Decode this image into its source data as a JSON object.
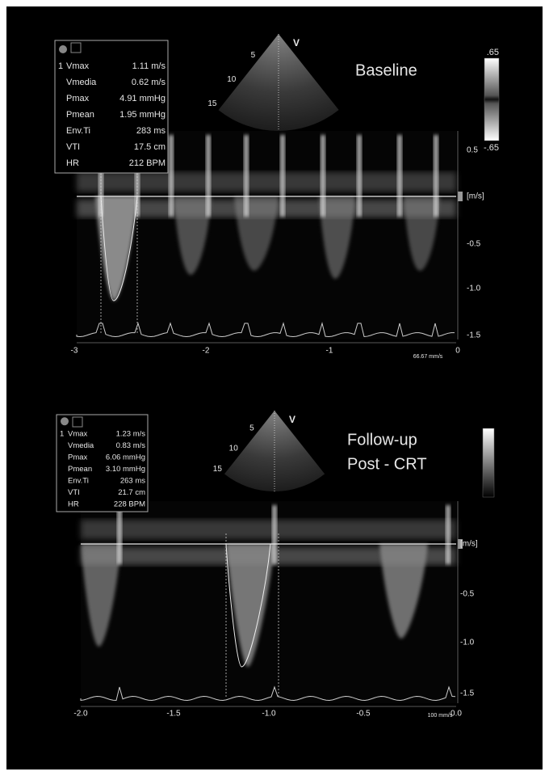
{
  "panels": [
    {
      "label": [
        "Baseline"
      ],
      "measurements": {
        "index": "1",
        "rows": [
          [
            "Vmax",
            "1.11 m/s"
          ],
          [
            "Vmedia",
            "0.62 m/s"
          ],
          [
            "Pmax",
            "4.91 mmHg"
          ],
          [
            "Pmean",
            "1.95 mmHg"
          ],
          [
            "Env.Ti",
            "283 ms"
          ],
          [
            "VTI",
            "17.5 cm"
          ],
          [
            "HR",
            "212 BPM"
          ]
        ]
      },
      "sector_depths": [
        "5",
        "10",
        "15"
      ],
      "probe_marker": "V",
      "colorbar": [
        ".65",
        "-.65"
      ],
      "velocity_axis": [
        "0.5",
        "[m/s]",
        "-0.5",
        "-1.0",
        "-1.5"
      ],
      "time_axis": [
        "-3",
        "-2",
        "-1",
        "0"
      ],
      "sweep": "66.67 mm/s"
    },
    {
      "label": [
        "Follow-up",
        "Post - CRT"
      ],
      "measurements": {
        "index": "1",
        "rows": [
          [
            "Vmax",
            "1.23 m/s"
          ],
          [
            "Vmedia",
            "0.83 m/s"
          ],
          [
            "Pmax",
            "6.06 mmHg"
          ],
          [
            "Pmean",
            "3.10 mmHg"
          ],
          [
            "Env.Ti",
            "263 ms"
          ],
          [
            "VTI",
            "21.7 cm"
          ],
          [
            "HR",
            "228 BPM"
          ]
        ]
      },
      "sector_depths": [
        "5",
        "10",
        "15"
      ],
      "probe_marker": "V",
      "colorbar": [],
      "velocity_axis": [
        "[m/s]",
        "-0.5",
        "-1.0",
        "-1.5"
      ],
      "time_axis": [
        "-2.0",
        "-1.5",
        "-1.0",
        "-0.5",
        "0.0"
      ],
      "sweep": "100 mm/s"
    }
  ]
}
